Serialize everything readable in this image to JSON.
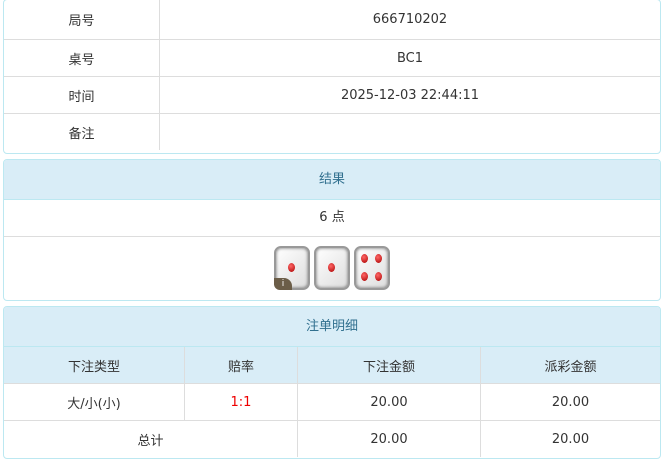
{
  "info": {
    "rows": [
      {
        "label": "局号",
        "value": "666710202"
      },
      {
        "label": "桌号",
        "value": "BC1"
      },
      {
        "label": "时间",
        "value": "2025-12-03 22:44:11"
      },
      {
        "label": "备注",
        "value": ""
      }
    ]
  },
  "result": {
    "title": "结果",
    "points": "6 点",
    "dice": [
      1,
      1,
      4
    ],
    "info_icon": "i"
  },
  "bets": {
    "title": "注单明细",
    "headers": [
      "下注类型",
      "赔率",
      "下注金额",
      "派彩金额"
    ],
    "rows": [
      {
        "type": "大/小(小)",
        "odds": "1:1",
        "amount": "20.00",
        "payout": "20.00"
      }
    ],
    "total": {
      "label": "总计",
      "amount": "20.00",
      "payout": "20.00"
    },
    "odds_color": "#e00000"
  }
}
